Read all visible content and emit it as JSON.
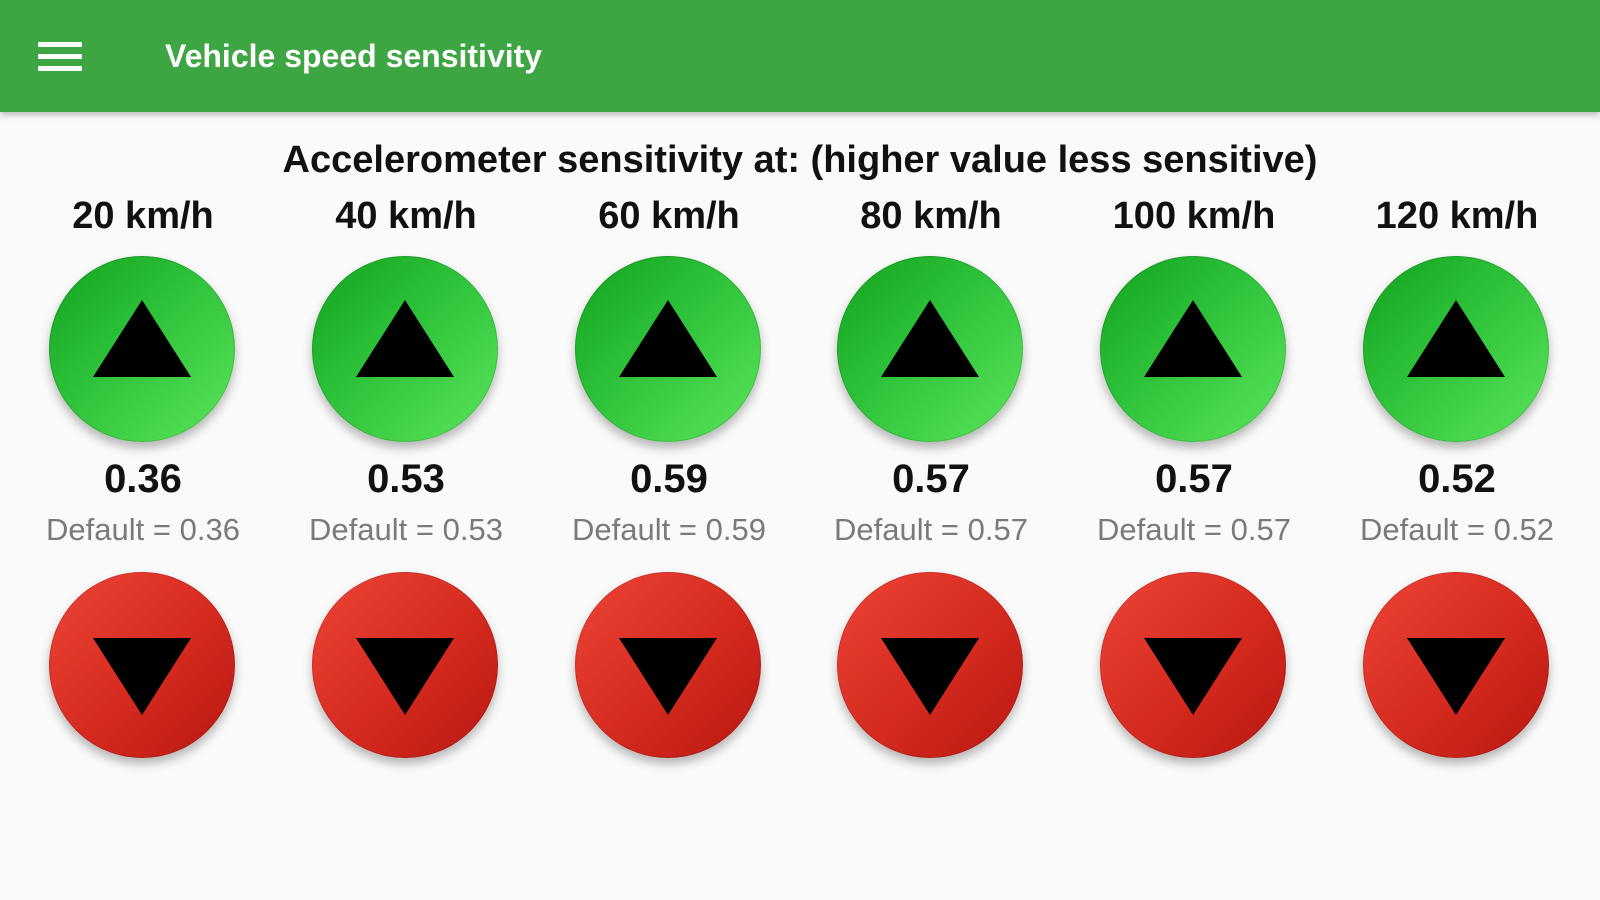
{
  "appbar": {
    "title": "Vehicle speed sensitivity",
    "menu_icon": "hamburger-menu-icon",
    "color": "#3da542"
  },
  "heading": "Accelerometer sensitivity at: (higher value less sensitive)",
  "columns": [
    {
      "speed": "20 km/h",
      "value": "0.36",
      "default_text": "Default = 0.36"
    },
    {
      "speed": "40 km/h",
      "value": "0.53",
      "default_text": "Default = 0.53"
    },
    {
      "speed": "60 km/h",
      "value": "0.59",
      "default_text": "Default = 0.59"
    },
    {
      "speed": "80 km/h",
      "value": "0.57",
      "default_text": "Default = 0.57"
    },
    {
      "speed": "100 km/h",
      "value": "0.57",
      "default_text": "Default = 0.57"
    },
    {
      "speed": "120 km/h",
      "value": "0.52",
      "default_text": "Default = 0.52"
    }
  ],
  "colors": {
    "increase_button": "#2ec23a",
    "decrease_button": "#d52a1f",
    "arrow": "#000000"
  },
  "icons": {
    "increase": "triangle-up-icon",
    "decrease": "triangle-down-icon"
  }
}
